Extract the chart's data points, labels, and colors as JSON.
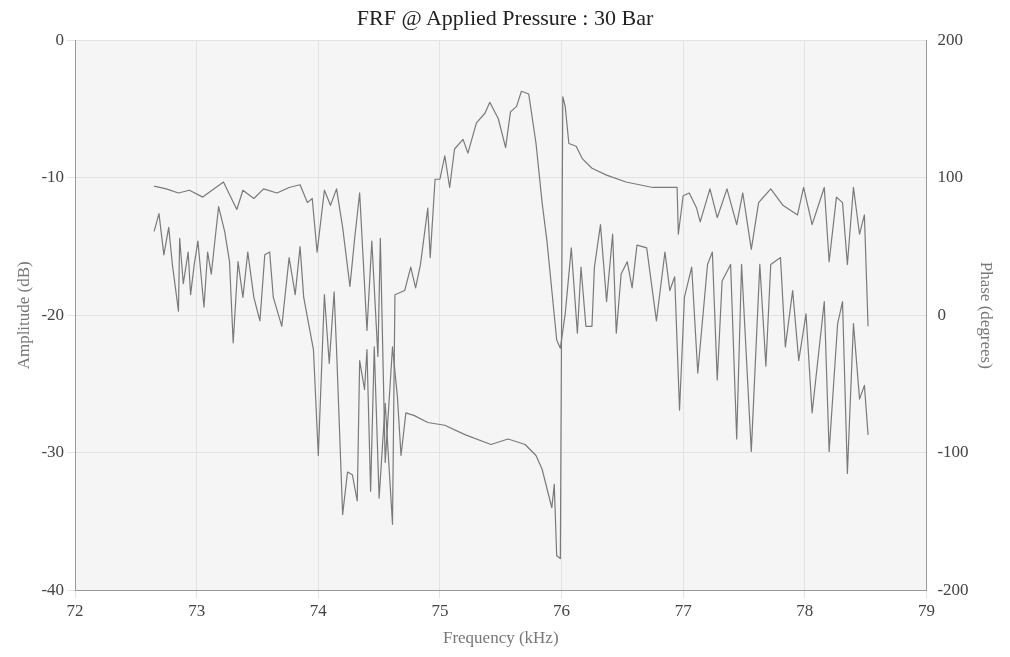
{
  "chart_data": {
    "type": "line",
    "title": "FRF @ Applied Pressure : 30 Bar",
    "xlabel": "Frequency (kHz)",
    "ylabel": "Amplitude (dB)",
    "y2label": "Phase (degrees)",
    "xlim": [
      72,
      79
    ],
    "xticks": [
      72,
      73,
      74,
      75,
      76,
      77,
      78,
      79
    ],
    "ylim": [
      -40,
      0
    ],
    "yticks": [
      -40,
      -30,
      -20,
      -10,
      0
    ],
    "y2lim": [
      -200,
      200
    ],
    "y2ticks": [
      -200,
      -100,
      0,
      100,
      200
    ],
    "grid": true,
    "legend": false,
    "marker": "none",
    "line_style": "solid",
    "series": [
      {
        "color": "#7a7a7a",
        "x": [
          72.65,
          72.69,
          72.73,
          72.77,
          72.8,
          72.85,
          72.86,
          72.89,
          72.93,
          72.95,
          72.98,
          73.01,
          73.06,
          73.09,
          73.12,
          73.18,
          73.23,
          73.27,
          73.3,
          73.34,
          73.38,
          73.42,
          73.47,
          73.52,
          73.56,
          73.6,
          73.63,
          73.7,
          73.76,
          73.81,
          73.85,
          73.88,
          73.92,
          73.96,
          74,
          74.05,
          74.09,
          74.13,
          74.15,
          74.2,
          74.24,
          74.28,
          74.32,
          74.34,
          74.38,
          74.4,
          74.43,
          74.46,
          74.5,
          74.55,
          74.61,
          74.63,
          74.71,
          74.76,
          74.8,
          74.84,
          74.9,
          74.92,
          74.96,
          75,
          75.04,
          75.08,
          75.12,
          75.19,
          75.23,
          75.3,
          75.37,
          75.41,
          75.48,
          75.54,
          75.58,
          75.63,
          75.67,
          75.73,
          75.79,
          75.84,
          75.88,
          75.92,
          75.96,
          75.99,
          76.03,
          76.08,
          76.13,
          76.16,
          76.2,
          76.25,
          76.27,
          76.32,
          76.37,
          76.42,
          76.45,
          76.49,
          76.54,
          76.58,
          76.62,
          76.7,
          76.78,
          76.85,
          76.89,
          76.93,
          76.97,
          77.01,
          77.07,
          77.12,
          77.2,
          77.24,
          77.28,
          77.32,
          77.39,
          77.44,
          77.48,
          77.56,
          77.63,
          77.68,
          77.72,
          77.8,
          77.84,
          77.9,
          77.95,
          78.01,
          78.06,
          78.16,
          78.2,
          78.27,
          78.31,
          78.35,
          78.4,
          78.45,
          78.49,
          78.52
        ],
        "values": [
          -13.9,
          -12.6,
          -15.6,
          -13.6,
          -16.3,
          -19.7,
          -14.4,
          -17.7,
          -15.4,
          -18.5,
          -16.3,
          -14.6,
          -19.4,
          -15.4,
          -17,
          -12.1,
          -13.9,
          -16.1,
          -22,
          -16.1,
          -18.7,
          -15.4,
          -18.7,
          -20.4,
          -15.6,
          -15.4,
          -18.7,
          -20.8,
          -15.8,
          -18.5,
          -15,
          -18.7,
          -20.6,
          -22.5,
          -30.2,
          -18.5,
          -23.5,
          -18.3,
          -22.5,
          -34.5,
          -31.4,
          -31.6,
          -33.5,
          -23.3,
          -25.4,
          -22.5,
          -32.8,
          -22.3,
          -33.3,
          -26.4,
          -35.2,
          -18.5,
          -18.2,
          -16.5,
          -18,
          -16.3,
          -12.2,
          -15.8,
          -10.1,
          -10.1,
          -8.4,
          -10.7,
          -7.9,
          -7.2,
          -8.2,
          -6,
          -5.3,
          -4.5,
          -5.7,
          -7.8,
          -5.2,
          -4.8,
          -3.7,
          -3.9,
          -7.5,
          -11.8,
          -14.6,
          -18.2,
          -21.8,
          -22.4,
          -19.9,
          -15.1,
          -21.3,
          -16.5,
          -20.8,
          -20.8,
          -16.5,
          -13.4,
          -19,
          -14.1,
          -21.3,
          -17,
          -16.1,
          -18,
          -14.9,
          -15.1,
          -20.4,
          -15.4,
          -18.2,
          -17.2,
          -26.9,
          -18.7,
          -16.5,
          -24.2,
          -16.3,
          -15.4,
          -24.7,
          -17.5,
          -16.3,
          -29,
          -16.3,
          -29.9,
          -16.3,
          -23.7,
          -16.3,
          -15.8,
          -22.3,
          -18.2,
          -23.3,
          -19.9,
          -27.1,
          -19,
          -29.9,
          -20.6,
          -19,
          -31.5,
          -20.6,
          -26.1,
          -25.1,
          -28.7
        ]
      },
      {
        "color": "#7a7a7a",
        "axis": "y2",
        "x": [
          72.65,
          72.75,
          72.85,
          72.94,
          73.05,
          73.22,
          73.33,
          73.38,
          73.47,
          73.55,
          73.66,
          73.76,
          73.85,
          73.91,
          73.95,
          73.99,
          74.05,
          74.1,
          74.15,
          74.2,
          74.26,
          74.3,
          74.34,
          74.4,
          74.44,
          74.49,
          74.51,
          74.55,
          74.61,
          74.65,
          74.68,
          74.72,
          74.79,
          74.9,
          75.04,
          75.21,
          75.42,
          75.56,
          75.7,
          75.79,
          75.84,
          75.88,
          75.92,
          75.94,
          75.96,
          75.99,
          76.01,
          76.03,
          76.06,
          76.12,
          76.17,
          76.25,
          76.37,
          76.53,
          76.75,
          76.95,
          76.96,
          77,
          77.05,
          77.11,
          77.14,
          77.22,
          77.28,
          77.36,
          77.44,
          77.49,
          77.56,
          77.62,
          77.72,
          77.82,
          77.94,
          77.99,
          78.06,
          78.16,
          78.2,
          78.26,
          78.31,
          78.35,
          78.4,
          78.45,
          78.49,
          78.52
        ],
        "values": [
          94,
          92,
          89,
          91,
          86,
          97,
          77,
          91,
          85,
          92,
          89,
          93,
          95,
          82,
          85,
          46,
          91,
          80,
          92,
          64,
          21,
          57,
          89,
          -11,
          54,
          -30,
          56,
          -107,
          -23,
          -59,
          -102,
          -71,
          -73,
          -78,
          -80,
          -87,
          -94,
          -90,
          -94,
          -102,
          -112,
          -126,
          -140,
          -123,
          -175,
          -177,
          159,
          152,
          125,
          123,
          114,
          107,
          102,
          97,
          93,
          93,
          59,
          87,
          89,
          78,
          68,
          92,
          71,
          92,
          66,
          89,
          48,
          82,
          92,
          80,
          73,
          93,
          66,
          93,
          39,
          86,
          82,
          37,
          93,
          59,
          73,
          -8
        ]
      }
    ]
  }
}
